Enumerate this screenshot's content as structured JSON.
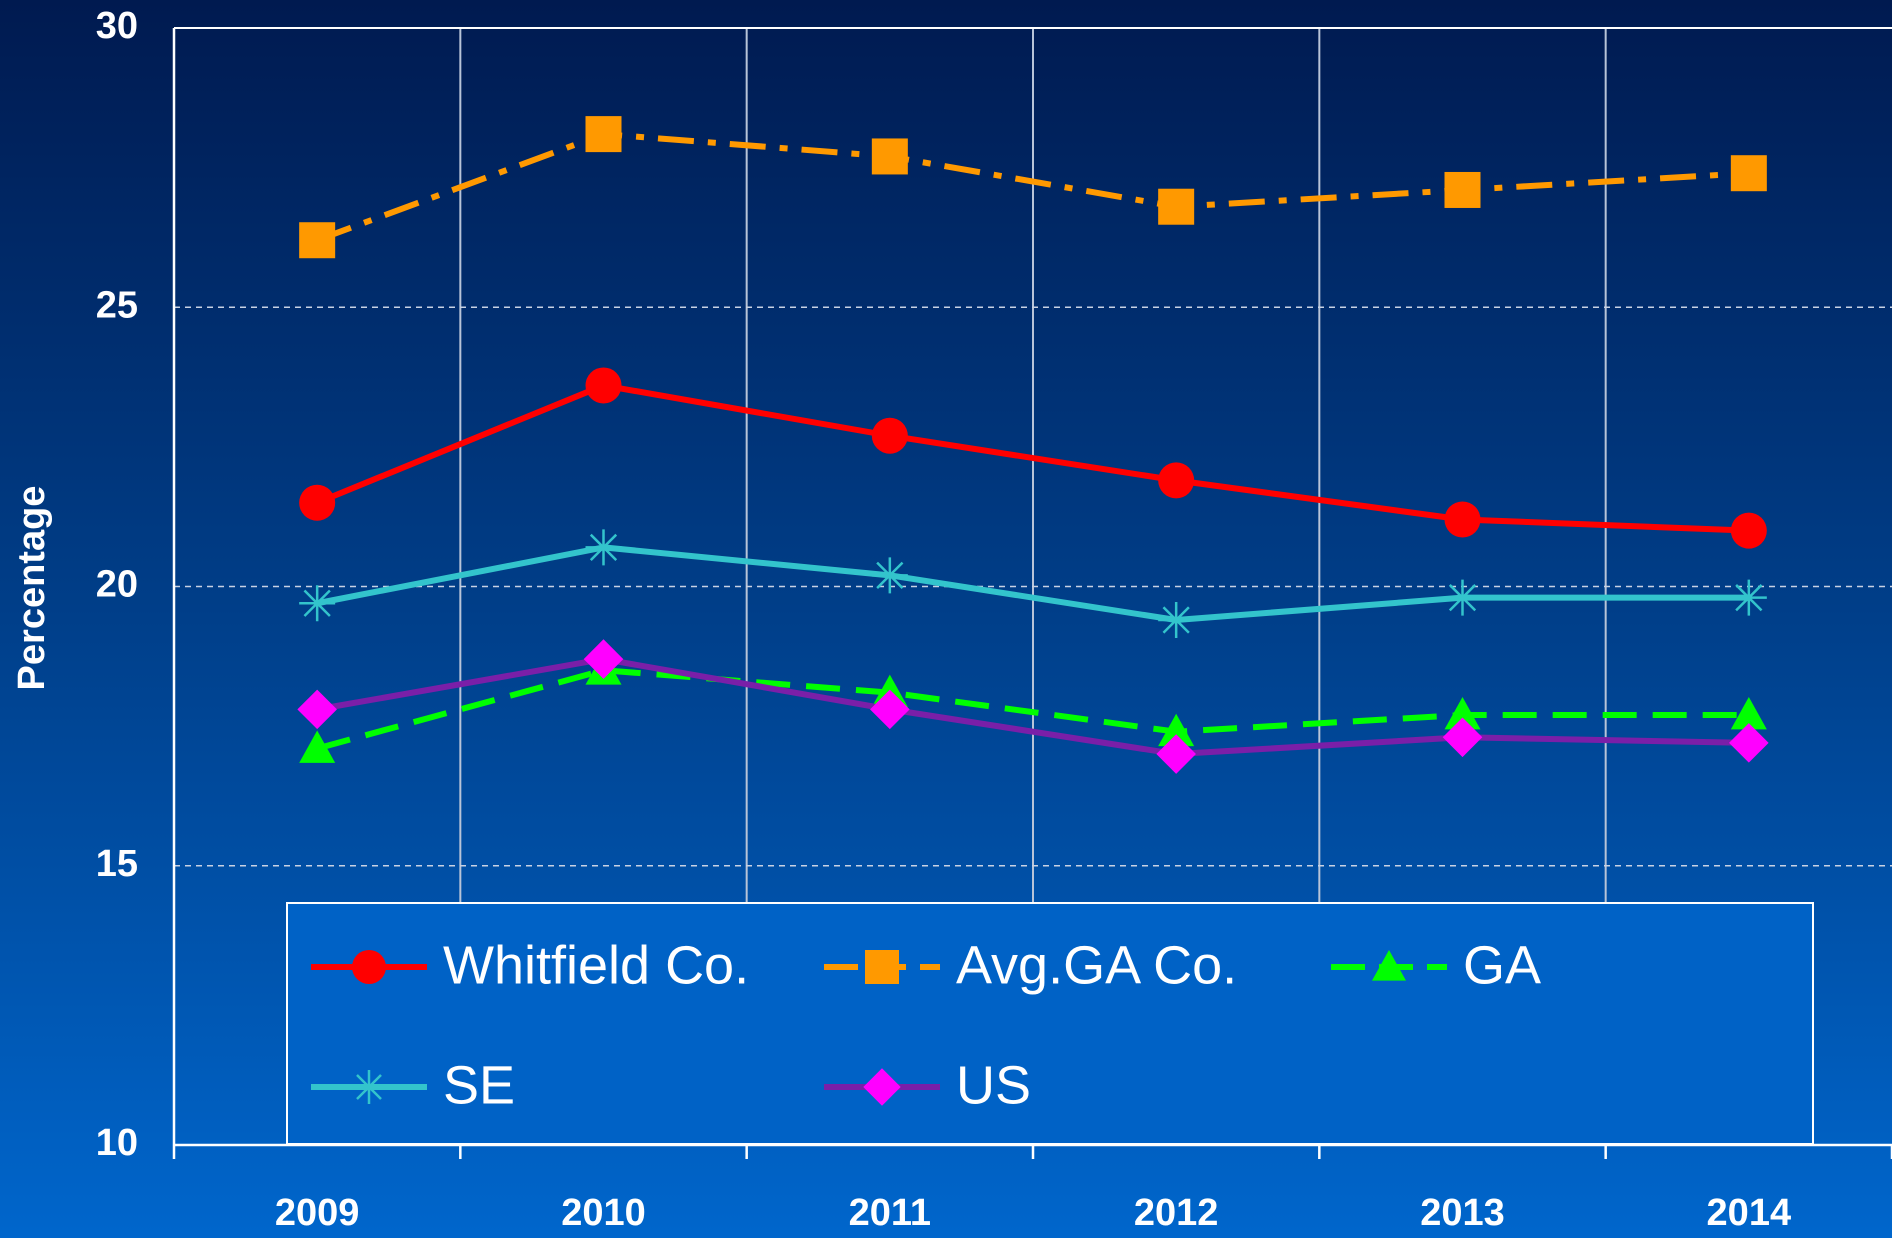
{
  "chart_data": {
    "type": "line",
    "y_label": "Percentage",
    "categories": [
      "2009",
      "2010",
      "2011",
      "2012",
      "2013",
      "2014"
    ],
    "series": [
      {
        "name": "Whitfield Co.",
        "color": "#ff0000",
        "marker": "circle",
        "dash": "solid",
        "values": [
          21.5,
          23.6,
          22.7,
          21.9,
          21.2,
          21.0
        ]
      },
      {
        "name": "Avg.GA Co.",
        "color": "#ff9900",
        "marker": "square",
        "dash": "dashdot",
        "values": [
          26.2,
          28.1,
          27.7,
          26.8,
          27.1,
          27.4
        ]
      },
      {
        "name": "GA",
        "color": "#00ff00",
        "marker": "triangle",
        "dash": "dashed",
        "values": [
          17.1,
          18.5,
          18.1,
          17.4,
          17.7,
          17.7
        ]
      },
      {
        "name": "SE",
        "color": "#33c4cc",
        "marker": "asterisk",
        "dash": "solid",
        "values": [
          19.7,
          20.7,
          20.2,
          19.4,
          19.8,
          19.8
        ]
      },
      {
        "name": "US",
        "color": "#7a1fa8",
        "marker_color": "#ff00ff",
        "marker": "diamond",
        "dash": "solid",
        "values": [
          17.8,
          18.7,
          17.8,
          17.0,
          17.3,
          17.2
        ]
      }
    ],
    "ylim": [
      10,
      30
    ],
    "yticks": [
      10,
      15,
      20,
      25,
      30
    ],
    "grid": true
  }
}
